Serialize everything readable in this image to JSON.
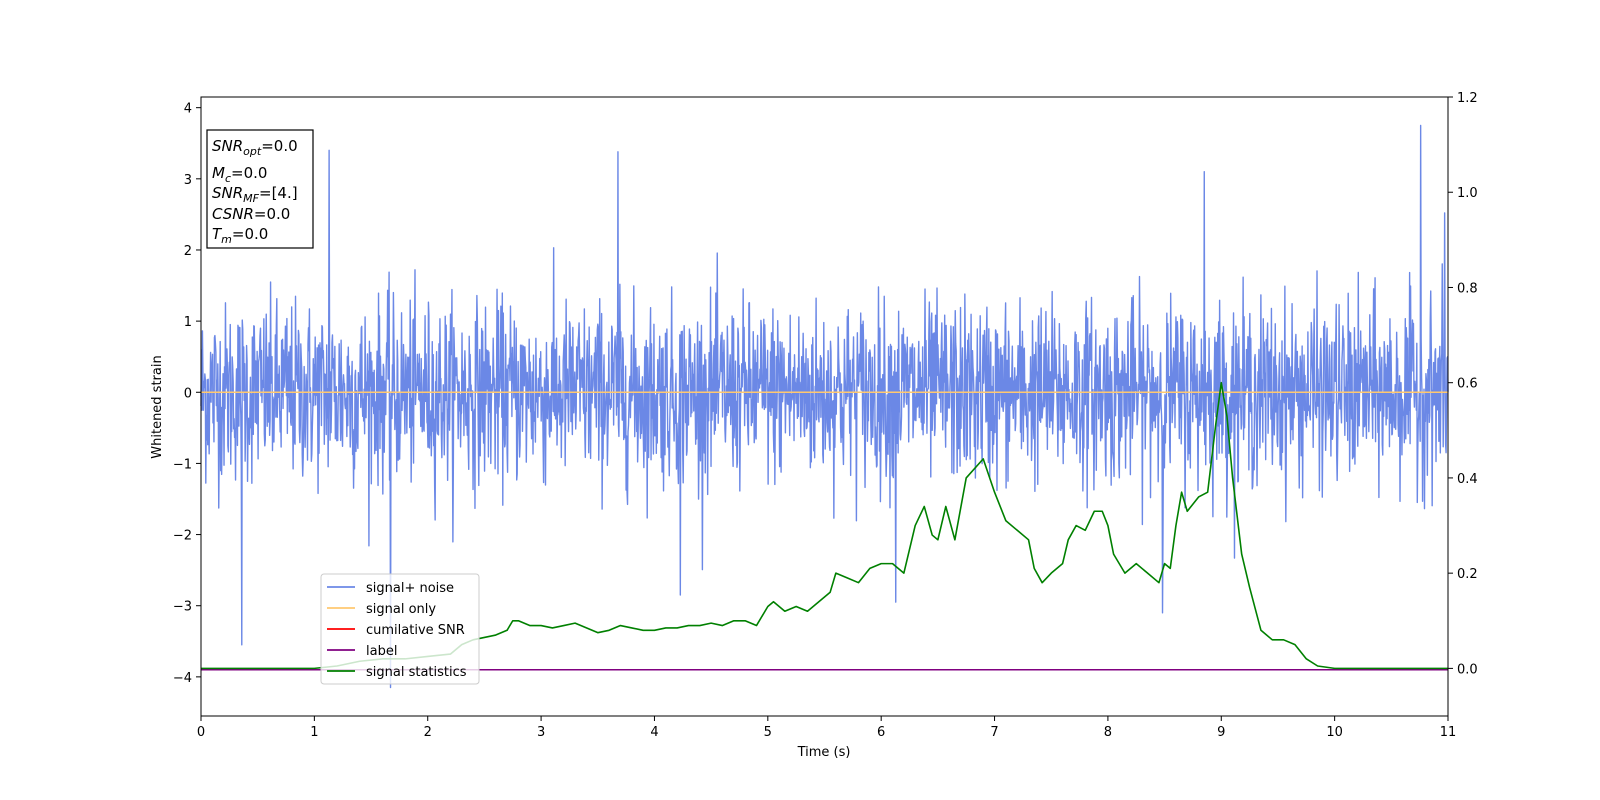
{
  "chart_data": {
    "type": "line",
    "title": "",
    "xlabel": "Time (s)",
    "ylabel": "Whitened strain",
    "xlim": [
      0,
      11
    ],
    "ylim_left": [
      -4.55,
      4.15
    ],
    "ylim_right": [
      -0.1,
      1.2
    ],
    "x_ticks": [
      0,
      1,
      2,
      3,
      4,
      5,
      6,
      7,
      8,
      9,
      10,
      11
    ],
    "x_tick_labels": [
      "0",
      "1",
      "2",
      "3",
      "4",
      "5",
      "6",
      "7",
      "8",
      "9",
      "10",
      "11"
    ],
    "y_left_ticks": [
      4,
      3,
      2,
      1,
      0,
      -1,
      -2,
      -3,
      -4
    ],
    "y_left_tick_labels": [
      "4",
      "3",
      "2",
      "1",
      "0",
      "−1",
      "−2",
      "−3",
      "−4"
    ],
    "y_right_ticks": [
      1.2,
      1.0,
      0.8,
      0.6,
      0.4,
      0.2,
      0.0
    ],
    "y_right_tick_labels": [
      "1.2",
      "1.0",
      "0.8",
      "0.6",
      "0.4",
      "0.2",
      "0.0"
    ],
    "legend_position": "lower-left",
    "colors": {
      "signal_noise": "#6b88e6",
      "signal_only": "#ffc870",
      "cumulative_snr": "#ff0000",
      "label": "#800080",
      "signal_statistics": "#008000"
    },
    "series": [
      {
        "name": "signal+ noise",
        "axis": "left",
        "note": "dense noise band, approx ±1.3 with spikes",
        "spikes": [
          {
            "x": 0.36,
            "y": -3.55
          },
          {
            "x": 1.13,
            "y": 3.4
          },
          {
            "x": 1.67,
            "y": -4.15
          },
          {
            "x": 3.68,
            "y": 3.38
          },
          {
            "x": 4.23,
            "y": -2.85
          },
          {
            "x": 6.13,
            "y": -2.95
          },
          {
            "x": 8.85,
            "y": 3.1
          },
          {
            "x": 8.48,
            "y": -3.1
          },
          {
            "x": 10.76,
            "y": 3.75
          },
          {
            "x": 10.97,
            "y": 2.52
          }
        ]
      },
      {
        "name": "signal only",
        "axis": "left",
        "x": [
          0,
          11
        ],
        "y": [
          0,
          0
        ]
      },
      {
        "name": "cumilative SNR",
        "axis": "right",
        "x": [],
        "y": []
      },
      {
        "name": "label",
        "axis": "left",
        "x": [
          0,
          11
        ],
        "y": [
          -3.9,
          -3.9
        ]
      },
      {
        "name": "signal statistics",
        "axis": "right",
        "x": [
          0,
          1.0,
          1.2,
          1.4,
          1.6,
          1.8,
          2.0,
          2.2,
          2.3,
          2.4,
          2.5,
          2.6,
          2.7,
          2.75,
          2.8,
          2.9,
          3.0,
          3.1,
          3.2,
          3.3,
          3.4,
          3.5,
          3.6,
          3.7,
          3.8,
          3.9,
          4.0,
          4.1,
          4.2,
          4.3,
          4.4,
          4.5,
          4.6,
          4.7,
          4.8,
          4.9,
          5.0,
          5.05,
          5.15,
          5.25,
          5.35,
          5.45,
          5.55,
          5.6,
          5.7,
          5.8,
          5.9,
          6.0,
          6.1,
          6.2,
          6.3,
          6.38,
          6.45,
          6.5,
          6.57,
          6.65,
          6.75,
          6.9,
          7.0,
          7.1,
          7.2,
          7.3,
          7.35,
          7.42,
          7.5,
          7.6,
          7.65,
          7.72,
          7.8,
          7.88,
          7.95,
          8.0,
          8.05,
          8.15,
          8.25,
          8.35,
          8.45,
          8.5,
          8.55,
          8.6,
          8.65,
          8.7,
          8.8,
          8.88,
          8.95,
          9.0,
          9.05,
          9.1,
          9.18,
          9.25,
          9.35,
          9.45,
          9.55,
          9.65,
          9.75,
          9.85,
          10.0,
          11.0
        ],
        "y": [
          0.0,
          0.0,
          0.005,
          0.015,
          0.02,
          0.02,
          0.025,
          0.03,
          0.05,
          0.06,
          0.065,
          0.07,
          0.08,
          0.1,
          0.1,
          0.09,
          0.09,
          0.085,
          0.09,
          0.095,
          0.085,
          0.075,
          0.08,
          0.09,
          0.085,
          0.08,
          0.08,
          0.085,
          0.085,
          0.09,
          0.09,
          0.095,
          0.09,
          0.1,
          0.1,
          0.09,
          0.13,
          0.14,
          0.12,
          0.13,
          0.12,
          0.14,
          0.16,
          0.2,
          0.19,
          0.18,
          0.21,
          0.22,
          0.22,
          0.2,
          0.3,
          0.34,
          0.28,
          0.27,
          0.34,
          0.27,
          0.4,
          0.44,
          0.37,
          0.31,
          0.29,
          0.27,
          0.21,
          0.18,
          0.2,
          0.22,
          0.27,
          0.3,
          0.29,
          0.33,
          0.33,
          0.3,
          0.24,
          0.2,
          0.22,
          0.2,
          0.18,
          0.22,
          0.21,
          0.3,
          0.37,
          0.33,
          0.36,
          0.37,
          0.51,
          0.6,
          0.53,
          0.4,
          0.24,
          0.17,
          0.08,
          0.06,
          0.06,
          0.05,
          0.02,
          0.005,
          0.0,
          0.0
        ]
      }
    ],
    "info_box": {
      "lines": [
        {
          "symbol": "SNR",
          "sub": "opt",
          "value": "=0.0"
        },
        {
          "symbol": "M",
          "sub": "c",
          "value": "=0.0"
        },
        {
          "symbol": "SNR",
          "sub": "MF",
          "value": "=[4.]"
        },
        {
          "symbol": "CSNR",
          "sub": "",
          "value": "=0.0"
        },
        {
          "symbol": "T",
          "sub": "m",
          "value": "=0.0"
        }
      ]
    }
  }
}
